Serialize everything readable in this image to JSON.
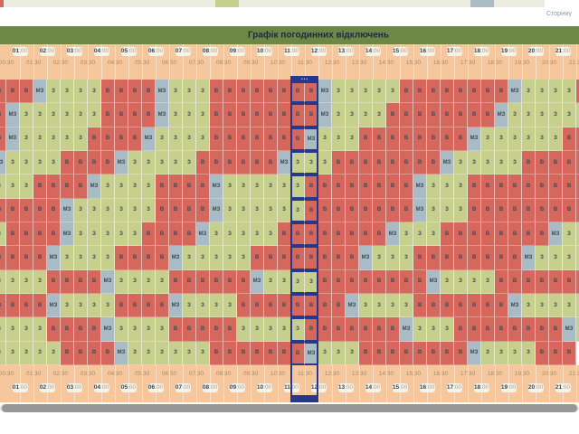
{
  "page": {
    "updated_text": "Сторінку",
    "title": "Графік погодинних відключень"
  },
  "colors": {
    "title_bar_bg": "#6d8745",
    "header_bg": "#f6c79c",
    "outage": "#d5675d",
    "powered": "#c6cf8b",
    "maybe": "#a9bcc6",
    "current_marker": "#26388c",
    "legend_strip_bg": "#ecede0"
  },
  "legend": {
    "swatches": [
      {
        "name": "outage-swatch",
        "color": "#d5675d"
      },
      {
        "name": "powered-swatch",
        "color": "#c6cf8b"
      },
      {
        "name": "maybe-swatch",
        "color": "#a9bcc6"
      }
    ]
  },
  "schedule": {
    "hour_labels": [
      "01:00",
      "02:00",
      "03:00",
      "04:00",
      "05:00",
      "06:00",
      "07:00",
      "08:00",
      "09:00",
      "10:00",
      "11:00",
      "12:00",
      "13:00",
      "14:00",
      "15:00",
      "16:00",
      "17:00",
      "18:00",
      "19:00",
      "20:00",
      "21:00"
    ],
    "half_hour_labels": [
      "00:30",
      "01:30",
      "02:30",
      "03:30",
      "04:30",
      "05:30",
      "06:30",
      "07:30",
      "08:30",
      "09:30",
      "10:30",
      "11:30",
      "12:30",
      "13:30",
      "14:30",
      "15:30",
      "16:30",
      "17:30",
      "18:30",
      "19:30",
      "20:30",
      "21:30"
    ],
    "cell_states": {
      "В": "outage",
      "З": "powered",
      "МЗ": "maybe"
    },
    "highlight_columns": [
      22,
      23
    ],
    "highlight_time_range": "11:00–12:00",
    "now_cap_glyph": "•••",
    "rows": [
      "В В В МЗ З З З З В В В В МЗ З З З В В В В В В В В МЗ З З З З З В В В В В В В В МЗ З З З З В",
      "В МЗ З З З З З З В В В В МЗ З З З В В В В В В В В МЗ З З З З В В В В В В В В МЗ З З З З З З",
      "В МЗ З З З З З В В В В МЗ З З З З В В В В В В В МЗ З З З В В В В В В В В МЗ З З З З З З В В",
      "МЗ З З З З В В В В МЗ З З З З З В В В В В В МЗ З З З В В В В В В В В МЗ З З З З З В В В В В",
      "З З З В В В В МЗ З З З З В В В В МЗ З З З З З З В В В В В В В В МЗ З З З В В В В В В В В В",
      "В В В В В МЗ З З З З З З В В В В МЗ З З З З З З В В В В В В В В МЗ З З З В В В В В В В В В",
      "З В В В В МЗ З З З З З В В В В МЗ З З З З З В В В В В В В В МЗ З З З В В В В В В В В МЗ З З",
      "В В В В МЗ З З З З В В В В МЗ З З З З З В В В В В В В В МЗ З З З В В В В В В В В МЗ З З З З",
      "З З З З В В В В МЗ З З З З В В В В В В МЗ З З З З В В В В В В В В МЗ З З З З В В В В В В В",
      "В В В В МЗ З З З З В В В В МЗ З З З З В В В В В В В В МЗ З З З З В В В В В В В МЗ З З З З З",
      "З З З З В В В В МЗ З З З З В В В В В З З З З З В В В В В В В МЗ З З З В В В В В В В В МЗ З",
      "З З З З З В В В В МЗ З З З З З З В В В В В В В МЗ З З З В В В В В В В В МЗ З З З З В В В"
    ]
  }
}
